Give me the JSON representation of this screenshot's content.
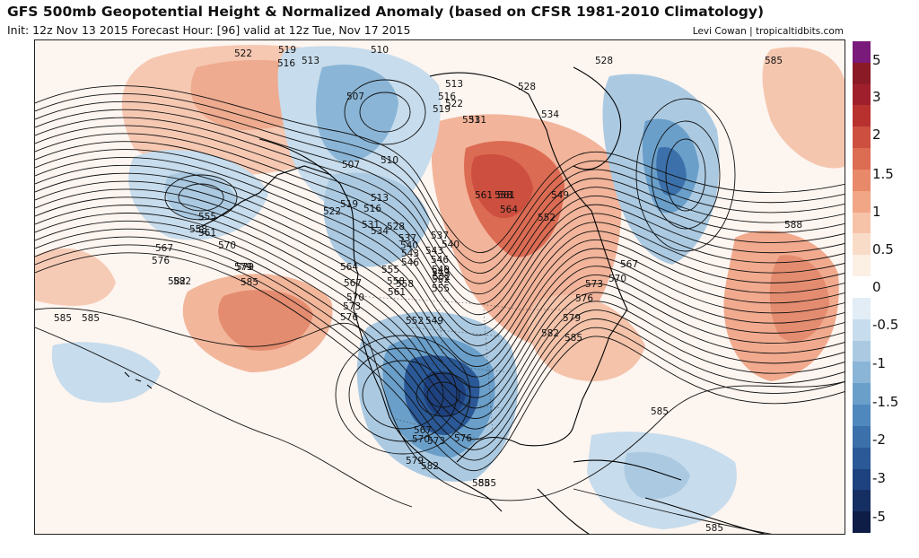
{
  "header": {
    "title": "GFS 500mb Geopotential Height & Normalized Anomaly (based on CFSR 1981-2010 Climatology)",
    "subtitle": "Init: 12z Nov 13 2015   Forecast Hour: [96]   valid at 12z Tue, Nov 17 2015",
    "credit": "Levi Cowan | tropicaltidbits.com"
  },
  "colors": {
    "ocean_neutral": "#fdf5f0",
    "pos_light": "#f4c7b0",
    "pos_mid": "#e8967a",
    "pos_strong": "#d65a46",
    "neg_light": "#cfe2ef",
    "neg_mid": "#8ebfdc",
    "neg_strong": "#3c84bf",
    "neg_deep": "#1d5494",
    "contour": "#111111",
    "coast": "#000000"
  },
  "colorbar": {
    "segments": [
      "#7a1a7a",
      "#8b1a27",
      "#a01f2c",
      "#b8312f",
      "#cc4f3f",
      "#dc6c52",
      "#e8896a",
      "#f1a686",
      "#f6c3a8",
      "#f9dcc8",
      "#fcefe4",
      "#ffffff",
      "#e2edf5",
      "#c7dcec",
      "#abcae2",
      "#8ab5d6",
      "#6a9fca",
      "#4f88bd",
      "#3b70ab",
      "#2b5997",
      "#1e4280",
      "#162f63",
      "#0e1d45"
    ],
    "tick_labels": [
      "5",
      "3",
      "2",
      "1.5",
      "1",
      "0.5",
      "0",
      "-0.5",
      "-1",
      "-1.5",
      "-2",
      "-3",
      "-5"
    ]
  },
  "height_labels": [
    {
      "text": "519"
    },
    {
      "text": "522"
    },
    {
      "text": "516"
    },
    {
      "text": "513"
    },
    {
      "text": "510"
    },
    {
      "text": "507"
    },
    {
      "text": "507"
    },
    {
      "text": "510"
    },
    {
      "text": "513"
    },
    {
      "text": "516"
    },
    {
      "text": "519"
    },
    {
      "text": "522"
    },
    {
      "text": "528"
    },
    {
      "text": "531"
    },
    {
      "text": "534"
    },
    {
      "text": "537"
    },
    {
      "text": "540"
    },
    {
      "text": "543"
    },
    {
      "text": "546"
    },
    {
      "text": "549"
    },
    {
      "text": "552"
    },
    {
      "text": "555"
    },
    {
      "text": "558"
    },
    {
      "text": "561"
    },
    {
      "text": "564"
    },
    {
      "text": "567"
    },
    {
      "text": "570"
    },
    {
      "text": "573"
    },
    {
      "text": "576"
    },
    {
      "text": "579"
    },
    {
      "text": "582"
    },
    {
      "text": "585"
    },
    {
      "text": "555"
    },
    {
      "text": "558"
    },
    {
      "text": "561"
    },
    {
      "text": "567"
    },
    {
      "text": "570"
    },
    {
      "text": "576"
    },
    {
      "text": "579"
    },
    {
      "text": "582"
    },
    {
      "text": "585"
    },
    {
      "text": "585"
    },
    {
      "text": "552"
    },
    {
      "text": "549"
    },
    {
      "text": "567"
    },
    {
      "text": "570"
    },
    {
      "text": "573"
    },
    {
      "text": "576"
    },
    {
      "text": "579"
    },
    {
      "text": "582"
    },
    {
      "text": "585"
    },
    {
      "text": "528"
    },
    {
      "text": "528"
    },
    {
      "text": "534"
    },
    {
      "text": "531"
    },
    {
      "text": "537"
    },
    {
      "text": "540"
    },
    {
      "text": "543"
    },
    {
      "text": "546"
    },
    {
      "text": "549"
    },
    {
      "text": "552"
    },
    {
      "text": "555"
    },
    {
      "text": "558"
    },
    {
      "text": "561"
    },
    {
      "text": "564"
    },
    {
      "text": "567"
    },
    {
      "text": "570"
    },
    {
      "text": "573"
    },
    {
      "text": "576"
    },
    {
      "text": "579"
    },
    {
      "text": "582"
    },
    {
      "text": "585"
    },
    {
      "text": "588"
    },
    {
      "text": "585"
    },
    {
      "text": "585"
    },
    {
      "text": "585"
    },
    {
      "text": "585"
    },
    {
      "text": "513"
    },
    {
      "text": "516"
    },
    {
      "text": "519"
    },
    {
      "text": "522"
    },
    {
      "text": "531"
    },
    {
      "text": "558"
    },
    {
      "text": "561"
    },
    {
      "text": "549"
    },
    {
      "text": "552"
    }
  ]
}
